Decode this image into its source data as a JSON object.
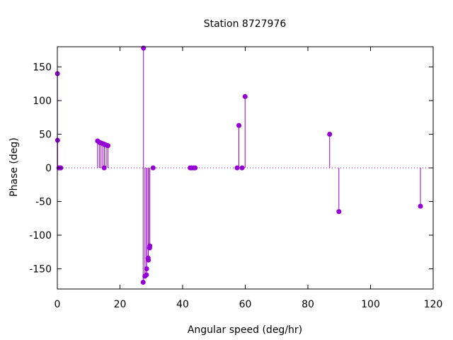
{
  "chart_data": {
    "type": "stem",
    "title": "Station 8727976",
    "xlabel": "Angular speed (deg/hr)",
    "ylabel": "Phase (deg)",
    "xlim": [
      0,
      120
    ],
    "ylim": [
      -180,
      180
    ],
    "xticks": [
      0,
      20,
      40,
      60,
      80,
      100,
      120
    ],
    "yticks": [
      -150,
      -100,
      -50,
      0,
      50,
      100,
      150
    ],
    "xtick_labels": [
      "0",
      "20",
      "40",
      "60",
      "80",
      "100",
      "120"
    ],
    "ytick_labels": [
      "-150",
      "-100",
      "-50",
      "0",
      "50",
      "100",
      "150"
    ],
    "zero_line": true,
    "grid": false,
    "series_color": "#9400d3",
    "points": [
      {
        "x": 0.04,
        "y": 140
      },
      {
        "x": 0.08,
        "y": 41
      },
      {
        "x": 0.5,
        "y": 0
      },
      {
        "x": 0.55,
        "y": 0
      },
      {
        "x": 1.0,
        "y": 0
      },
      {
        "x": 1.1,
        "y": 0
      },
      {
        "x": 12.85,
        "y": 40
      },
      {
        "x": 13.4,
        "y": 38
      },
      {
        "x": 13.94,
        "y": 37
      },
      {
        "x": 14.5,
        "y": 36
      },
      {
        "x": 14.96,
        "y": 0
      },
      {
        "x": 15.04,
        "y": 35
      },
      {
        "x": 15.59,
        "y": 34
      },
      {
        "x": 16.14,
        "y": 33
      },
      {
        "x": 27.5,
        "y": 178
      },
      {
        "x": 27.4,
        "y": -170
      },
      {
        "x": 27.97,
        "y": -161
      },
      {
        "x": 28.44,
        "y": -159
      },
      {
        "x": 28.51,
        "y": -150
      },
      {
        "x": 28.99,
        "y": -134
      },
      {
        "x": 29.06,
        "y": -137
      },
      {
        "x": 29.46,
        "y": -119
      },
      {
        "x": 29.53,
        "y": -116
      },
      {
        "x": 30.58,
        "y": 0
      },
      {
        "x": 42.4,
        "y": 0
      },
      {
        "x": 42.9,
        "y": 0
      },
      {
        "x": 43.5,
        "y": 0
      },
      {
        "x": 44.0,
        "y": 0
      },
      {
        "x": 57.4,
        "y": 0
      },
      {
        "x": 57.97,
        "y": 63
      },
      {
        "x": 58.98,
        "y": 0
      },
      {
        "x": 59.94,
        "y": 106
      },
      {
        "x": 86.95,
        "y": 50
      },
      {
        "x": 89.9,
        "y": -65
      },
      {
        "x": 115.94,
        "y": -57
      }
    ]
  }
}
